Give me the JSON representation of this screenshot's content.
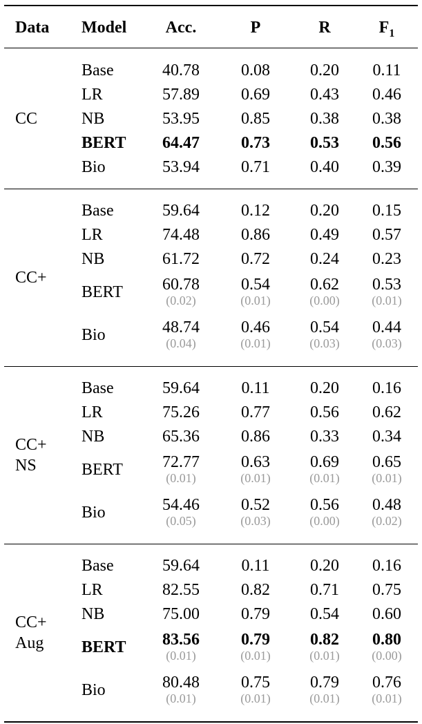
{
  "header": [
    {
      "text": "Data"
    },
    {
      "text": "Model"
    },
    {
      "text": "Acc."
    },
    {
      "text": "P"
    },
    {
      "text": "R"
    },
    {
      "text": "F",
      "sub": "1"
    }
  ],
  "groups": [
    {
      "label": [
        "CC"
      ],
      "rows": [
        {
          "model": "Base",
          "cells": [
            "40.78",
            "0.08",
            "0.20",
            "0.11"
          ]
        },
        {
          "model": "LR",
          "cells": [
            "57.89",
            "0.69",
            "0.43",
            "0.46"
          ]
        },
        {
          "model": "NB",
          "cells": [
            "53.95",
            "0.85",
            "0.38",
            "0.38"
          ]
        },
        {
          "model": "BERT",
          "cells": [
            "64.47",
            "0.73",
            "0.53",
            "0.56"
          ],
          "bold": true
        },
        {
          "model": "Bio",
          "cells": [
            "53.94",
            "0.71",
            "0.40",
            "0.39"
          ]
        }
      ]
    },
    {
      "label": [
        "CC+"
      ],
      "rows": [
        {
          "model": "Base",
          "cells": [
            "59.64",
            "0.12",
            "0.20",
            "0.15"
          ]
        },
        {
          "model": "LR",
          "cells": [
            "74.48",
            "0.86",
            "0.49",
            "0.57"
          ]
        },
        {
          "model": "NB",
          "cells": [
            "61.72",
            "0.72",
            "0.24",
            "0.23"
          ]
        },
        {
          "model": "BERT",
          "cells": [
            "60.78",
            "0.54",
            "0.62",
            "0.53"
          ],
          "std": [
            "(0.02)",
            "(0.01)",
            "(0.00)",
            "(0.01)"
          ]
        },
        {
          "model": "Bio",
          "cells": [
            "48.74",
            "0.46",
            "0.54",
            "0.44"
          ],
          "std": [
            "(0.04)",
            "(0.01)",
            "(0.03)",
            "(0.03)"
          ]
        }
      ]
    },
    {
      "label": [
        "CC+",
        "NS"
      ],
      "rows": [
        {
          "model": "Base",
          "cells": [
            "59.64",
            "0.11",
            "0.20",
            "0.16"
          ]
        },
        {
          "model": "LR",
          "cells": [
            "75.26",
            "0.77",
            "0.56",
            "0.62"
          ]
        },
        {
          "model": "NB",
          "cells": [
            "65.36",
            "0.86",
            "0.33",
            "0.34"
          ]
        },
        {
          "model": "BERT",
          "cells": [
            "72.77",
            "0.63",
            "0.69",
            "0.65"
          ],
          "std": [
            "(0.01)",
            "(0.01)",
            "(0.01)",
            "(0.01)"
          ]
        },
        {
          "model": "Bio",
          "cells": [
            "54.46",
            "0.52",
            "0.56",
            "0.48"
          ],
          "std": [
            "(0.05)",
            "(0.03)",
            "(0.00)",
            "(0.02)"
          ]
        }
      ]
    },
    {
      "label": [
        "CC+",
        "Aug"
      ],
      "rows": [
        {
          "model": "Base",
          "cells": [
            "59.64",
            "0.11",
            "0.20",
            "0.16"
          ]
        },
        {
          "model": "LR",
          "cells": [
            "82.55",
            "0.82",
            "0.71",
            "0.75"
          ]
        },
        {
          "model": "NB",
          "cells": [
            "75.00",
            "0.79",
            "0.54",
            "0.60"
          ]
        },
        {
          "model": "BERT",
          "cells": [
            "83.56",
            "0.79",
            "0.82",
            "0.80"
          ],
          "std": [
            "(0.01)",
            "(0.01)",
            "(0.01)",
            "(0.00)"
          ],
          "bold": true
        },
        {
          "model": "Bio",
          "cells": [
            "80.48",
            "0.75",
            "0.79",
            "0.76"
          ],
          "std": [
            "(0.01)",
            "(0.01)",
            "(0.01)",
            "(0.01)"
          ]
        }
      ]
    }
  ]
}
